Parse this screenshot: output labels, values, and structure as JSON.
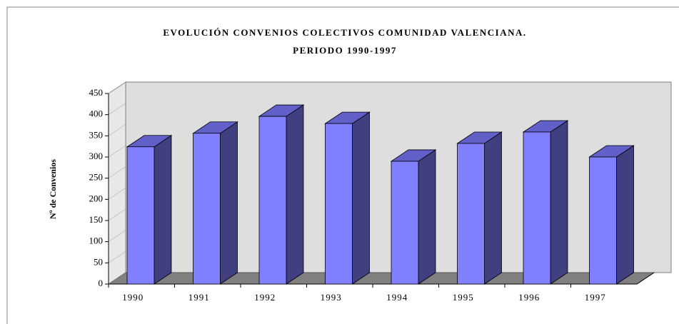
{
  "chart_data": {
    "type": "bar3d",
    "title": "EVOLUCIÓN CONVENIOS COLECTIVOS COMUNIDAD VALENCIANA.",
    "subtitle": "PERIODO 1990-1997",
    "y_label": "Nº de Convenios",
    "categories": [
      "1990",
      "1991",
      "1992",
      "1993",
      "1994",
      "1995",
      "1996",
      "1997"
    ],
    "values": [
      324,
      356,
      396,
      379,
      290,
      332,
      359,
      300
    ],
    "color": "#8080ff",
    "ylim": [
      0,
      450
    ],
    "yticks": [
      0,
      50,
      100,
      150,
      200,
      250,
      300,
      350,
      400,
      450
    ]
  }
}
